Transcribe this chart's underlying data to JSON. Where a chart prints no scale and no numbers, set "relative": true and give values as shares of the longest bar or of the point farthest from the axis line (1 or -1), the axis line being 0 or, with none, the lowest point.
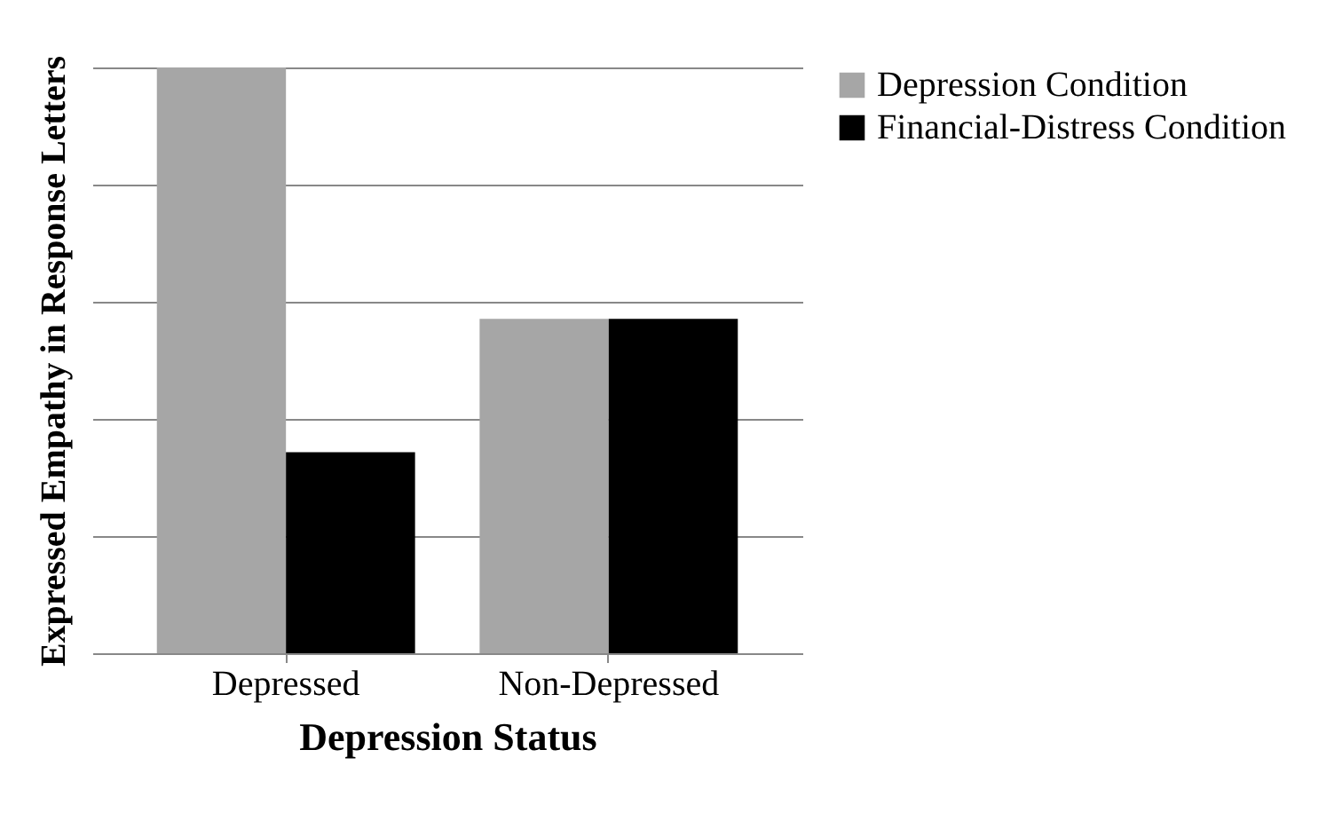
{
  "chart_data": {
    "type": "bar",
    "xlabel": "Depression Status",
    "ylabel": "Expressed Empathy in Response Letters",
    "categories": [
      "Depressed",
      "Non-Depressed"
    ],
    "relative": true,
    "grid": "y",
    "legend": "right",
    "series": [
      {
        "name": "Depression Condition",
        "color": "#a6a6a6",
        "values": [
          1,
          0.571
        ]
      },
      {
        "name": "Financial-Distress Condition",
        "color": "#000000",
        "values": [
          0.343,
          0.571
        ]
      }
    ]
  }
}
